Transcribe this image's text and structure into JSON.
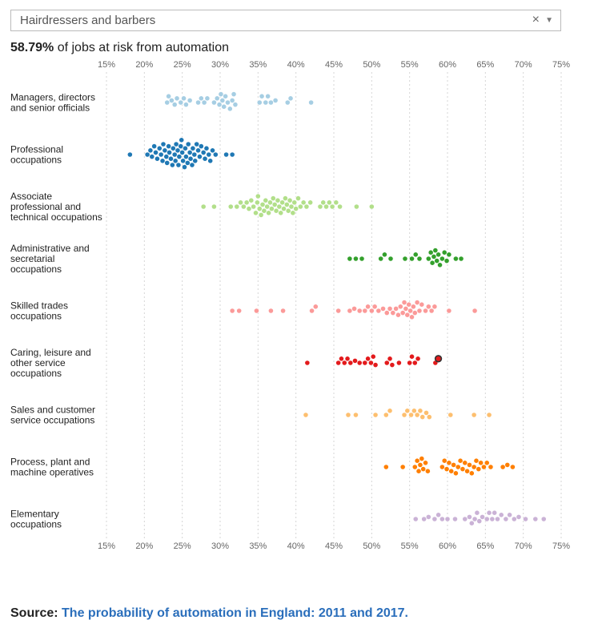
{
  "selector": {
    "value": "Hairdressers and barbers",
    "clear_icon": "×",
    "dropdown_icon": "▼"
  },
  "headline": {
    "value": "58.79%",
    "text": " of jobs at risk from automation"
  },
  "chart_data": {
    "type": "scatter",
    "subtype": "beeswarm",
    "x_axis": {
      "ticks": [
        15,
        20,
        25,
        30,
        35,
        40,
        45,
        50,
        55,
        60,
        65,
        70,
        75
      ],
      "tick_labels": [
        "15%",
        "20%",
        "25%",
        "30%",
        "35%",
        "40%",
        "45%",
        "50%",
        "55%",
        "60%",
        "65%",
        "70%",
        "75%"
      ],
      "range": [
        15,
        75
      ]
    },
    "highlight": {
      "category_index": 5,
      "value": 58.79,
      "label": "Hairdressers and barbers"
    },
    "categories": [
      {
        "name": [
          "Managers, directors",
          "and senior officials"
        ],
        "color": "#a6cee3",
        "values": [
          23,
          23.2,
          23.6,
          24,
          24.3,
          24.8,
          25.2,
          25.5,
          26,
          27.1,
          27.5,
          27.9,
          28.3,
          29.2,
          29.6,
          29.9,
          30.1,
          30.3,
          30.5,
          30.7,
          31,
          31.3,
          31.6,
          31.8,
          32,
          35.2,
          35.5,
          36,
          36.3,
          36.7,
          37.3,
          38.9,
          39.3,
          42
        ]
      },
      {
        "name": [
          "Professional",
          "occupations"
        ],
        "color": "#1f78b4",
        "values": [
          18.1,
          20.4,
          20.8,
          21,
          21.3,
          21.5,
          21.7,
          22,
          22.2,
          22.4,
          22.5,
          22.7,
          22.9,
          23,
          23.2,
          23.3,
          23.5,
          23.7,
          23.8,
          24,
          24.1,
          24.2,
          24.4,
          24.5,
          24.6,
          24.8,
          24.9,
          25,
          25.1,
          25.3,
          25.4,
          25.5,
          25.7,
          25.8,
          26,
          26.1,
          26.3,
          26.4,
          26.6,
          26.7,
          26.9,
          27.1,
          27.3,
          27.5,
          27.8,
          28,
          28.2,
          28.5,
          28.7,
          29,
          29.4,
          30.8,
          31.6
        ]
      },
      {
        "name": [
          "Associate",
          "professional and",
          "technical occupations"
        ],
        "color": "#b2df8a",
        "values": [
          27.8,
          29.2,
          31.4,
          32.2,
          32.7,
          33.1,
          33.5,
          33.8,
          34.1,
          34.4,
          34.7,
          34.9,
          35,
          35.2,
          35.4,
          35.6,
          35.8,
          36,
          36.2,
          36.4,
          36.6,
          36.8,
          37,
          37.2,
          37.4,
          37.6,
          37.8,
          38,
          38.2,
          38.4,
          38.6,
          38.8,
          39,
          39.2,
          39.4,
          39.6,
          39.8,
          40,
          40.3,
          40.6,
          41,
          41.4,
          41.9,
          43.2,
          43.6,
          44,
          44.4,
          44.8,
          45.3,
          45.8,
          48,
          50
        ]
      },
      {
        "name": [
          "Administrative and",
          "secretarial",
          "occupations"
        ],
        "color": "#33a02c",
        "values": [
          47.1,
          47.9,
          48.7,
          51.2,
          51.7,
          52.5,
          54.4,
          55.3,
          55.8,
          56.3,
          57.5,
          57.8,
          58,
          58.2,
          58.4,
          58.6,
          58.8,
          59,
          59.3,
          59.6,
          59.9,
          60.2,
          61.1,
          61.8
        ]
      },
      {
        "name": [
          "Skilled trades",
          "occupations"
        ],
        "color": "#fb9a99",
        "values": [
          31.6,
          32.5,
          34.8,
          36.7,
          38.3,
          42.1,
          42.6,
          45.6,
          47.1,
          47.7,
          48.4,
          49.1,
          49.5,
          50,
          50.4,
          50.9,
          51.5,
          52,
          52.4,
          52.8,
          53.2,
          53.5,
          53.8,
          54.1,
          54.3,
          54.5,
          54.7,
          54.9,
          55.1,
          55.3,
          55.5,
          55.7,
          56,
          56.3,
          56.6,
          57.1,
          57.5,
          57.9,
          58.3,
          60.2,
          63.6
        ]
      },
      {
        "name": [
          "Caring, leisure and",
          "other service",
          "occupations"
        ],
        "color": "#e31a1c",
        "values": [
          41.5,
          45.6,
          46,
          46.4,
          46.8,
          47.2,
          47.8,
          48.4,
          49.1,
          49.5,
          49.9,
          50.2,
          50.5,
          52,
          52.4,
          52.7,
          53.6,
          55,
          55.3,
          55.7,
          56.1,
          58.4,
          58.79
        ]
      },
      {
        "name": [
          "Sales and customer",
          "service occupations"
        ],
        "color": "#fdbf6f",
        "values": [
          41.3,
          46.9,
          47.9,
          50.5,
          51.9,
          52.4,
          54.3,
          54.7,
          55.2,
          55.6,
          56,
          56.4,
          56.7,
          57.2,
          57.6,
          60.4,
          63.5,
          65.5
        ]
      },
      {
        "name": [
          "Process, plant and",
          "machine operatives"
        ],
        "color": "#ff7f00",
        "values": [
          51.9,
          54.1,
          55.7,
          56,
          56.2,
          56.4,
          56.6,
          56.8,
          57.1,
          57.4,
          59.3,
          59.6,
          59.9,
          60.2,
          60.5,
          60.8,
          61.1,
          61.4,
          61.7,
          62,
          62.3,
          62.6,
          62.9,
          63.2,
          63.5,
          63.8,
          64.1,
          64.4,
          64.8,
          65.2,
          65.7,
          67.3,
          67.9,
          68.6
        ]
      },
      {
        "name": [
          "Elementary",
          "occupations"
        ],
        "color": "#cab2d6",
        "values": [
          55.8,
          56.9,
          57.5,
          58.3,
          58.8,
          59.3,
          60,
          61,
          62.3,
          62.9,
          63.2,
          63.6,
          63.9,
          64.2,
          64.6,
          65.2,
          65.5,
          65.9,
          66.2,
          66.6,
          67.1,
          67.7,
          68.2,
          68.8,
          69.4,
          70.3,
          71.6,
          72.7
        ]
      }
    ]
  },
  "source": {
    "label": "Source:",
    "link_text": "The probability of automation in England: 2011 and 2017."
  }
}
